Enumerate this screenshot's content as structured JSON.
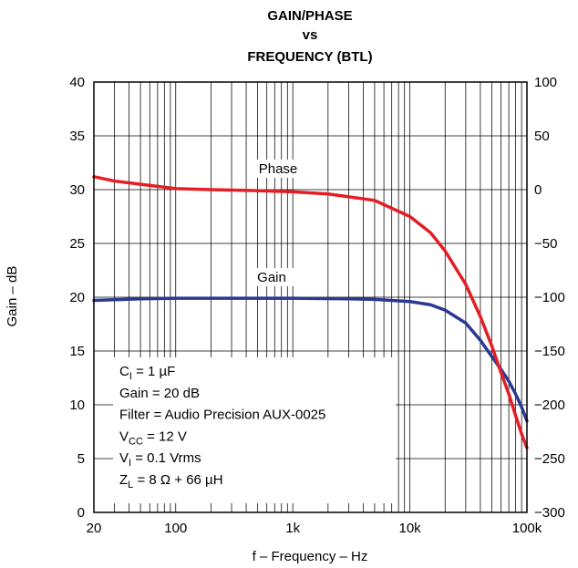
{
  "chart_data": {
    "type": "line",
    "title_lines": [
      "GAIN/PHASE",
      "vs",
      "FREQUENCY (BTL)"
    ],
    "xlabel": "f – Frequency – Hz",
    "ylabel": "Gain – dB",
    "x_scale": "log",
    "xlim": [
      20,
      100000
    ],
    "ylim": [
      0,
      40
    ],
    "y2lim": [
      -300,
      100
    ],
    "grid": true,
    "x_tick_labels": [
      {
        "value": 20,
        "label": "20"
      },
      {
        "value": 100,
        "label": "100"
      },
      {
        "value": 1000,
        "label": "1k"
      },
      {
        "value": 10000,
        "label": "10k"
      },
      {
        "value": 100000,
        "label": "100k"
      }
    ],
    "y_tick_labels": [
      "0",
      "5",
      "10",
      "15",
      "20",
      "25",
      "30",
      "35",
      "40"
    ],
    "y2_tick_labels": [
      "−300",
      "−250",
      "−200",
      "−150",
      "−100",
      "−50",
      "0",
      "50",
      "100"
    ],
    "series": [
      {
        "name": "Phase",
        "axis": "right",
        "color": "#e31e24",
        "x": [
          20,
          30,
          50,
          100,
          200,
          500,
          1000,
          2000,
          5000,
          10000,
          15000,
          20000,
          30000,
          40000,
          50000,
          60000,
          70000,
          80000,
          90000,
          100000
        ],
        "y": [
          12,
          8,
          5,
          1,
          0,
          -1,
          -2,
          -4,
          -10,
          -25,
          -40,
          -57,
          -88,
          -118,
          -145,
          -170,
          -190,
          -210,
          -227,
          -240
        ]
      },
      {
        "name": "Gain",
        "axis": "left",
        "color": "#2b3990",
        "x": [
          20,
          50,
          100,
          300,
          1000,
          3000,
          5000,
          10000,
          15000,
          20000,
          30000,
          40000,
          50000,
          60000,
          70000,
          80000,
          90000,
          100000
        ],
        "y": [
          19.7,
          19.85,
          19.9,
          19.9,
          19.9,
          19.85,
          19.8,
          19.6,
          19.3,
          18.8,
          17.6,
          16.0,
          14.5,
          13.3,
          12.2,
          11.0,
          9.8,
          8.5
        ]
      }
    ],
    "annotations": [
      {
        "parts": [
          [
            "C",
            ""
          ],
          [
            "I",
            "sub"
          ],
          [
            " = 1 µF",
            ""
          ]
        ]
      },
      {
        "parts": [
          [
            "Gain = 20 dB",
            ""
          ]
        ]
      },
      {
        "parts": [
          [
            "Filter = Audio Precision AUX-0025",
            ""
          ]
        ]
      },
      {
        "parts": [
          [
            "V",
            ""
          ],
          [
            "CC",
            "sub"
          ],
          [
            " = 12 V",
            ""
          ]
        ]
      },
      {
        "parts": [
          [
            "V",
            ""
          ],
          [
            "I",
            "sub"
          ],
          [
            " = 0.1 Vrms",
            ""
          ]
        ]
      },
      {
        "parts": [
          [
            "Z",
            ""
          ],
          [
            "L",
            "sub"
          ],
          [
            " = 8 Ω + 66 µH",
            ""
          ]
        ]
      }
    ]
  }
}
